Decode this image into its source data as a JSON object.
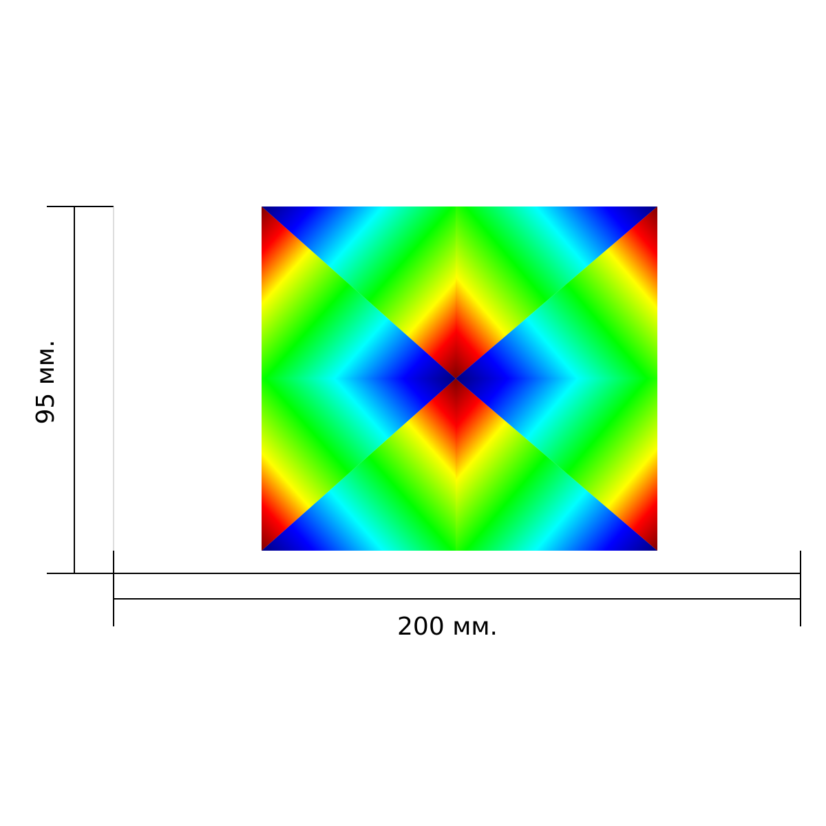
{
  "dimensions": {
    "height": {
      "label": "95 мм."
    },
    "width": {
      "label": "200 мм."
    }
  }
}
